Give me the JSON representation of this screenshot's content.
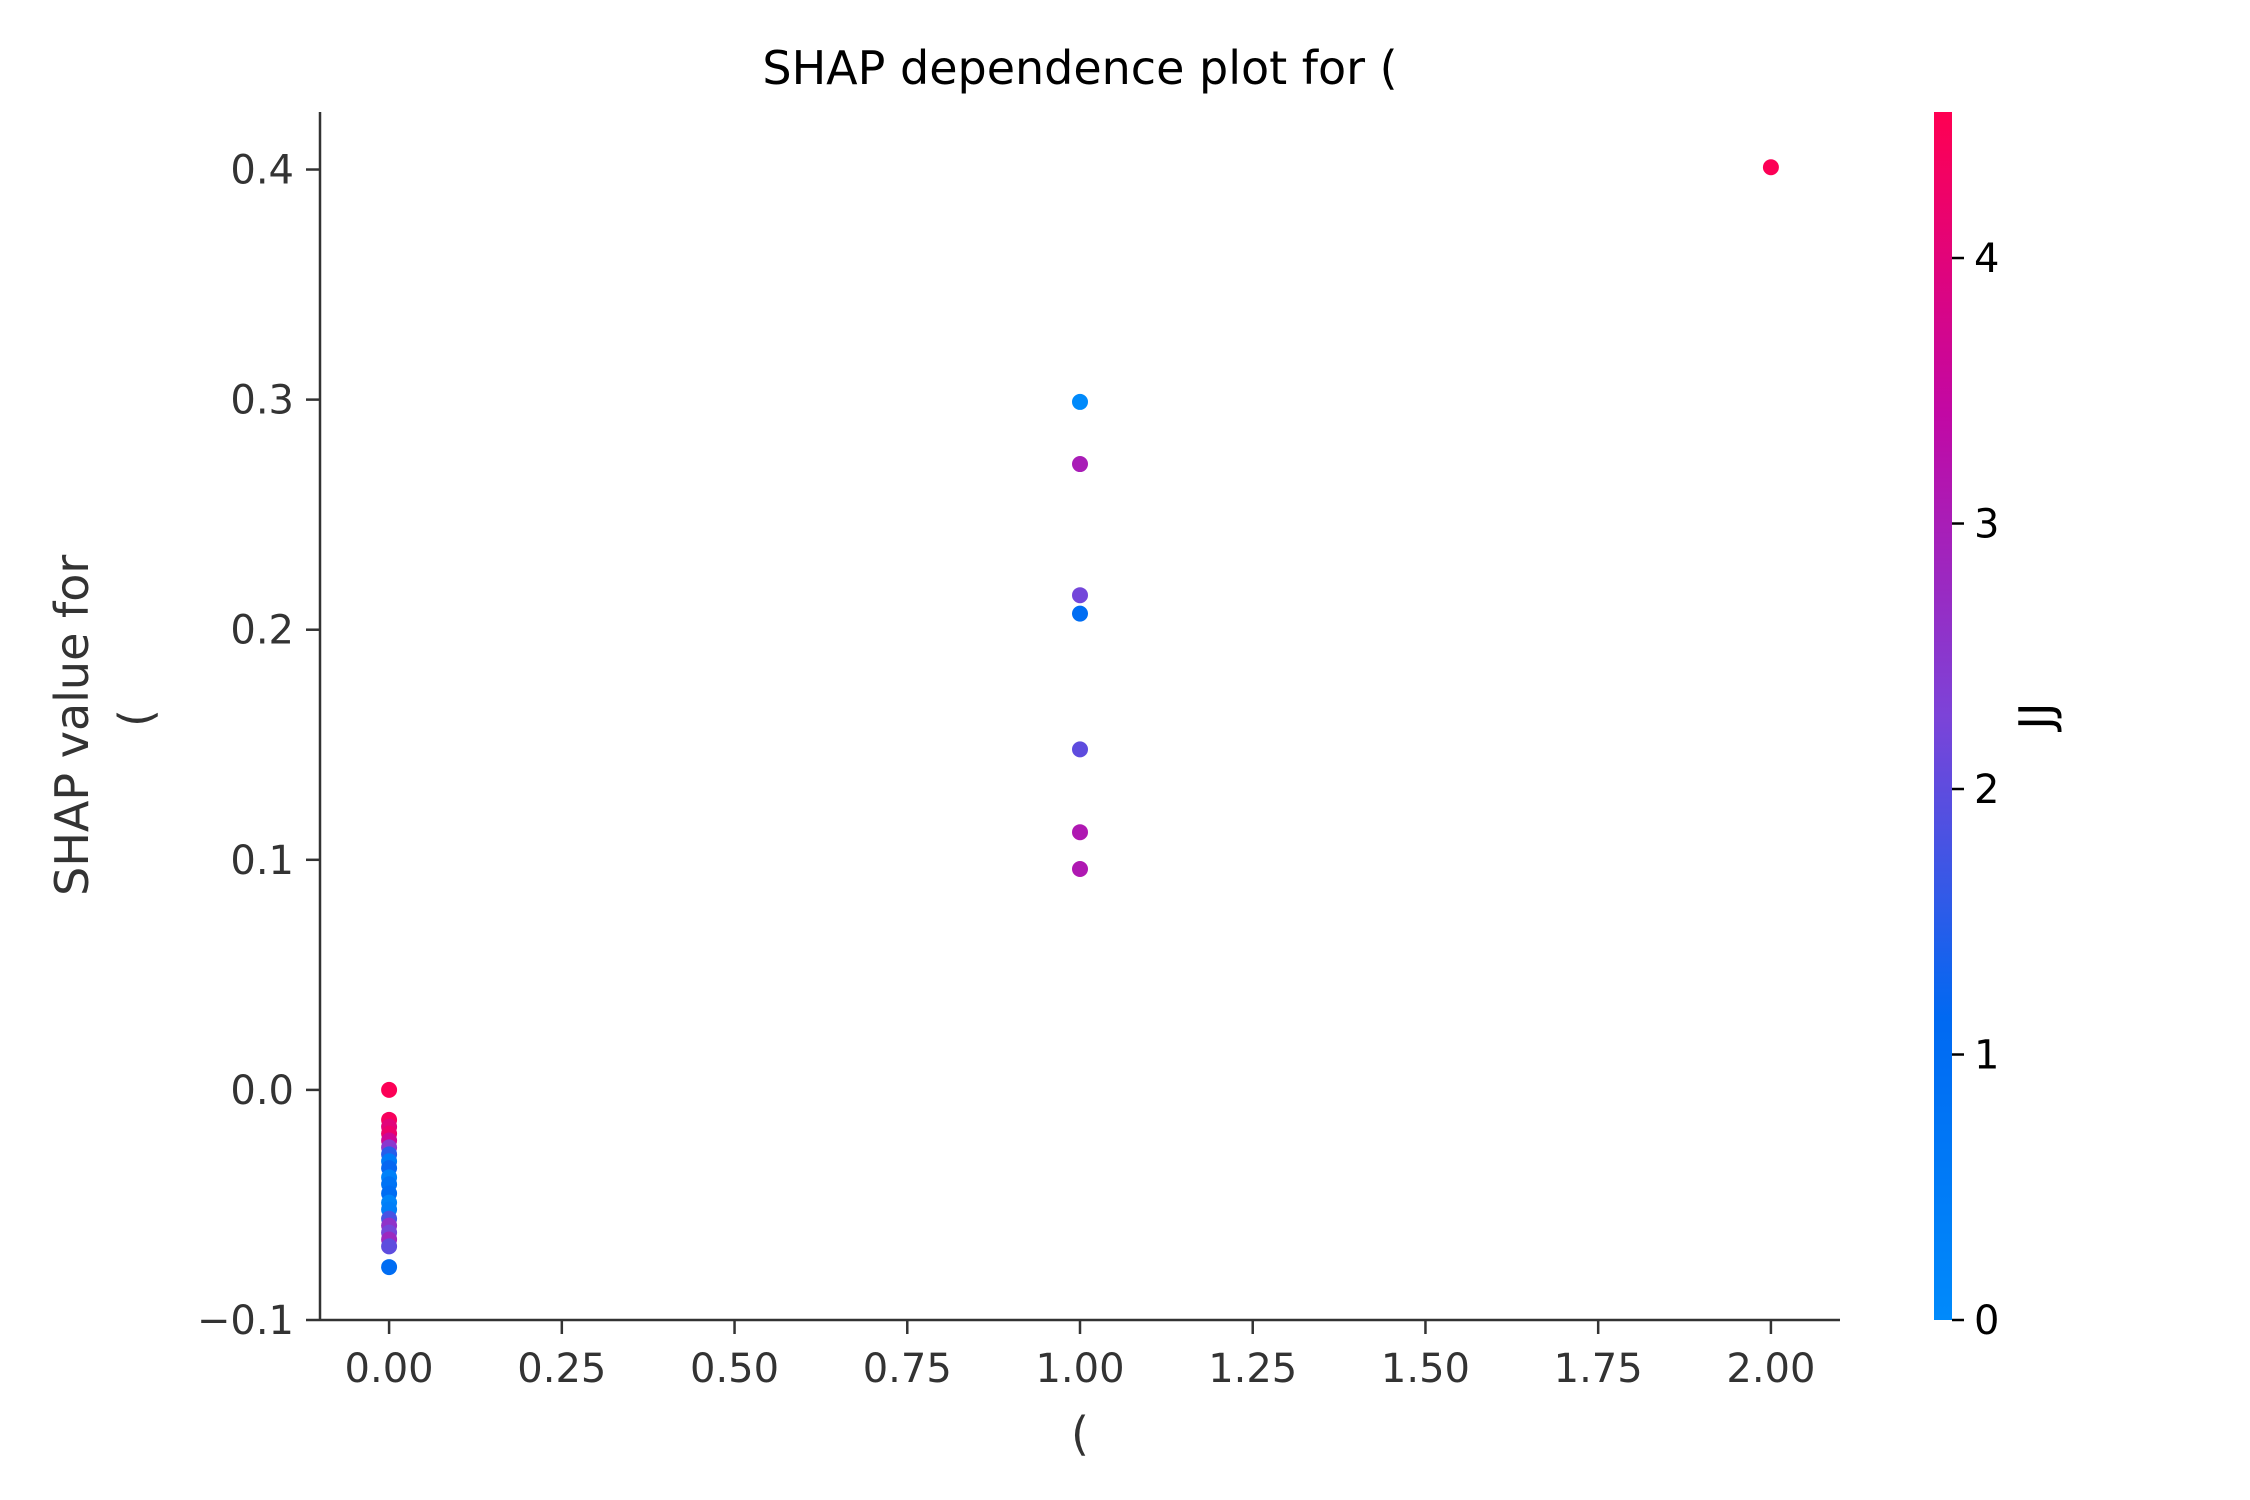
{
  "chart_data": {
    "type": "scatter",
    "title": "SHAP dependence plot for (",
    "xlabel": "(",
    "ylabel_lines": [
      "SHAP value for",
      "("
    ],
    "xlim": [
      -0.1,
      2.1
    ],
    "ylim": [
      -0.1,
      0.425
    ],
    "xticks": [
      0.0,
      0.25,
      0.5,
      0.75,
      1.0,
      1.25,
      1.5,
      1.75,
      2.0
    ],
    "xtick_labels": [
      "0.00",
      "0.25",
      "0.50",
      "0.75",
      "1.00",
      "1.25",
      "1.50",
      "1.75",
      "2.00"
    ],
    "yticks": [
      -0.1,
      0.0,
      0.1,
      0.2,
      0.3,
      0.4
    ],
    "ytick_labels": [
      "−0.1",
      "0.0",
      "0.1",
      "0.2",
      "0.3",
      "0.4"
    ],
    "grid": false,
    "colorbar": {
      "label": "JJ",
      "range": [
        0,
        4.55
      ],
      "ticks": [
        0,
        1,
        2,
        3,
        4
      ],
      "tick_labels": [
        "0",
        "1",
        "2",
        "3",
        "4"
      ],
      "colors": [
        "#008afb",
        "#0069f2",
        "#7c43d8",
        "#c208a4",
        "#ff0052"
      ]
    },
    "points": [
      {
        "x": 2.0,
        "y": 0.401,
        "c": 4.5
      },
      {
        "x": 1.0,
        "y": 0.299,
        "c": 0.0
      },
      {
        "x": 1.0,
        "y": 0.272,
        "c": 3.0
      },
      {
        "x": 1.0,
        "y": 0.215,
        "c": 2.2
      },
      {
        "x": 1.0,
        "y": 0.207,
        "c": 1.0
      },
      {
        "x": 1.0,
        "y": 0.148,
        "c": 2.0
      },
      {
        "x": 1.0,
        "y": 0.112,
        "c": 3.1
      },
      {
        "x": 1.0,
        "y": 0.096,
        "c": 3.1
      },
      {
        "x": 0.0,
        "y": 0.0,
        "c": 4.5
      },
      {
        "x": 0.0,
        "y": -0.013,
        "c": 4.4
      },
      {
        "x": 0.0,
        "y": -0.016,
        "c": 4.0
      },
      {
        "x": 0.0,
        "y": -0.019,
        "c": 4.2
      },
      {
        "x": 0.0,
        "y": -0.022,
        "c": 3.6
      },
      {
        "x": 0.0,
        "y": -0.025,
        "c": 2.5
      },
      {
        "x": 0.0,
        "y": -0.028,
        "c": 1.5
      },
      {
        "x": 0.0,
        "y": -0.031,
        "c": 0.5
      },
      {
        "x": 0.0,
        "y": -0.034,
        "c": 1.2
      },
      {
        "x": 0.0,
        "y": -0.038,
        "c": 0.3
      },
      {
        "x": 0.0,
        "y": -0.041,
        "c": 0.8
      },
      {
        "x": 0.0,
        "y": -0.045,
        "c": 1.0
      },
      {
        "x": 0.0,
        "y": -0.049,
        "c": 0.2
      },
      {
        "x": 0.0,
        "y": -0.052,
        "c": 0.4
      },
      {
        "x": 0.0,
        "y": -0.056,
        "c": 1.8
      },
      {
        "x": 0.0,
        "y": -0.059,
        "c": 2.6
      },
      {
        "x": 0.0,
        "y": -0.062,
        "c": 2.2
      },
      {
        "x": 0.0,
        "y": -0.065,
        "c": 2.8
      },
      {
        "x": 0.0,
        "y": -0.068,
        "c": 2.0
      },
      {
        "x": 0.0,
        "y": -0.077,
        "c": 1.0
      }
    ]
  }
}
